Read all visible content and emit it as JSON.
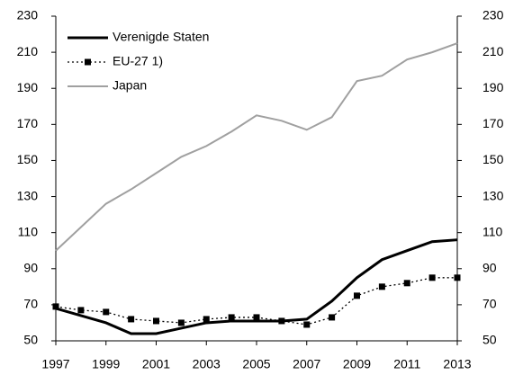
{
  "chart_data": {
    "type": "line",
    "x": [
      1997,
      1998,
      1999,
      2000,
      2001,
      2002,
      2003,
      2004,
      2005,
      2006,
      2007,
      2008,
      2009,
      2010,
      2011,
      2012,
      2013
    ],
    "xlim": [
      1997,
      2013
    ],
    "xticks": [
      1997,
      1999,
      2001,
      2003,
      2005,
      2007,
      2009,
      2011,
      2013
    ],
    "ylim": [
      50,
      230
    ],
    "yticks": [
      50,
      70,
      90,
      110,
      130,
      150,
      170,
      190,
      210,
      230
    ],
    "y2lim": [
      50,
      230
    ],
    "y2ticks": [
      50,
      70,
      90,
      110,
      130,
      150,
      170,
      190,
      210,
      230
    ],
    "legend": "top-left",
    "series": [
      {
        "name": "Verenigde Staten",
        "color": "#000000",
        "style": "solid",
        "values": [
          68,
          64,
          60,
          54,
          54,
          57,
          60,
          61,
          61,
          61,
          62,
          72,
          85,
          95,
          100,
          105,
          106
        ]
      },
      {
        "name": "EU-27 1)",
        "color": "#000000",
        "style": "dotted",
        "marker": "square",
        "values": [
          69,
          67,
          66,
          62,
          61,
          60,
          62,
          63,
          63,
          61,
          59,
          63,
          75,
          80,
          82,
          85,
          85
        ]
      },
      {
        "name": "Japan",
        "color": "#a0a0a0",
        "style": "solid",
        "values": [
          100,
          113,
          126,
          134,
          143,
          152,
          158,
          166,
          175,
          172,
          167,
          174,
          194,
          197,
          206,
          210,
          215
        ]
      }
    ]
  }
}
